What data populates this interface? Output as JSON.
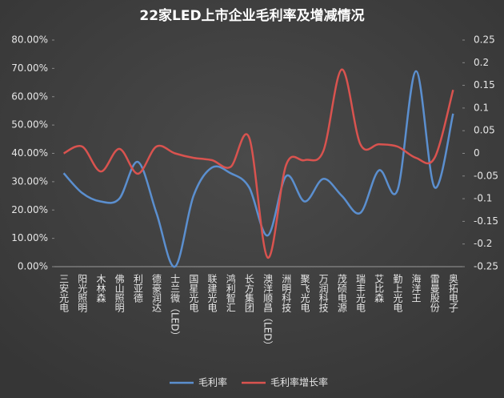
{
  "chart_data": {
    "type": "line",
    "title": "22家LED上市企业毛利率及增减情况",
    "categories": [
      "三安光电",
      "阳光照明",
      "木林森",
      "佛山照明",
      "利亚德",
      "德豪润达",
      "士兰微（LED）",
      "国星光电",
      "联建光电",
      "鸿利智汇",
      "长方集团",
      "澳洋顺昌（LED）",
      "洲明科技",
      "聚飞光电",
      "万润科技",
      "茂硕电源",
      "瑞丰光电",
      "艾比森",
      "勤上光电",
      "海洋王",
      "雷曼股份",
      "奥拓电子"
    ],
    "series": [
      {
        "name": "毛利率",
        "color": "#5b8fcf",
        "values": [
          33,
          26,
          23,
          24,
          37,
          19,
          0,
          25,
          35,
          33,
          28,
          11,
          32,
          23,
          31,
          25,
          19,
          34,
          27,
          69,
          28,
          54
        ]
      },
      {
        "name": "毛利率增长率",
        "color": "#d9534f",
        "axis": "y2",
        "values": [
          0,
          0.015,
          -0.04,
          0.01,
          -0.045,
          0.015,
          0,
          -0.01,
          -0.015,
          -0.03,
          0.035,
          -0.23,
          -0.025,
          -0.015,
          0.005,
          0.185,
          0.02,
          0.02,
          0.015,
          -0.01,
          -0.01,
          0.14
        ]
      }
    ],
    "ylim": [
      0,
      80
    ],
    "yticks": [
      {
        "value": 0,
        "label": "0.00%"
      },
      {
        "value": 10,
        "label": "10.00%"
      },
      {
        "value": 20,
        "label": "20.00%"
      },
      {
        "value": 30,
        "label": "30.00%"
      },
      {
        "value": 40,
        "label": "40.00%"
      },
      {
        "value": 50,
        "label": "50.00%"
      },
      {
        "value": 60,
        "label": "60.00%"
      },
      {
        "value": 70,
        "label": "70.00%"
      },
      {
        "value": 80,
        "label": "80.00%"
      }
    ],
    "y2lim": [
      -0.25,
      0.25
    ],
    "y2ticks": [
      -0.25,
      -0.2,
      -0.15,
      -0.1,
      -0.05,
      0,
      0.05,
      0.1,
      0.15,
      0.2,
      0.25
    ],
    "grid": false
  }
}
